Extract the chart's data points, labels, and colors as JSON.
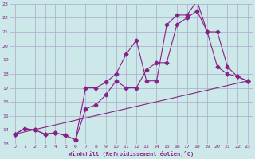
{
  "xlabel": "Windchill (Refroidissement éolien,°C)",
  "bg_color": "#cce8e8",
  "grid_color": "#aaaacc",
  "line_color": "#882288",
  "xlim": [
    -0.5,
    23.5
  ],
  "ylim": [
    13,
    23
  ],
  "xticks": [
    0,
    1,
    2,
    3,
    4,
    5,
    6,
    7,
    8,
    9,
    10,
    11,
    12,
    13,
    14,
    15,
    16,
    17,
    18,
    19,
    20,
    21,
    22,
    23
  ],
  "yticks": [
    13,
    14,
    15,
    16,
    17,
    18,
    19,
    20,
    21,
    22,
    23
  ],
  "line1_x": [
    0,
    1,
    2,
    3,
    4,
    5,
    6,
    7,
    8,
    9,
    10,
    11,
    12,
    13,
    14,
    15,
    16,
    17,
    18,
    19,
    20,
    21,
    22,
    23
  ],
  "line1_y": [
    13.7,
    14.1,
    14.0,
    13.7,
    13.8,
    13.6,
    13.3,
    17.0,
    17.0,
    17.4,
    18.0,
    19.4,
    20.4,
    17.5,
    17.5,
    21.5,
    22.2,
    22.2,
    23.2,
    21.0,
    18.5,
    18.0,
    17.8,
    17.5
  ],
  "line2_x": [
    0,
    1,
    2,
    3,
    4,
    5,
    6,
    7,
    8,
    9,
    10,
    11,
    12,
    13,
    14,
    15,
    16,
    17,
    18,
    19,
    20,
    21,
    22,
    23
  ],
  "line2_y": [
    13.7,
    14.1,
    14.0,
    13.7,
    13.8,
    13.6,
    13.3,
    15.5,
    15.8,
    16.5,
    17.5,
    17.0,
    17.0,
    18.3,
    18.8,
    18.8,
    21.5,
    22.0,
    22.5,
    21.0,
    21.0,
    18.5,
    17.8,
    17.5
  ],
  "line3_x": [
    0,
    23
  ],
  "line3_y": [
    13.7,
    17.5
  ]
}
